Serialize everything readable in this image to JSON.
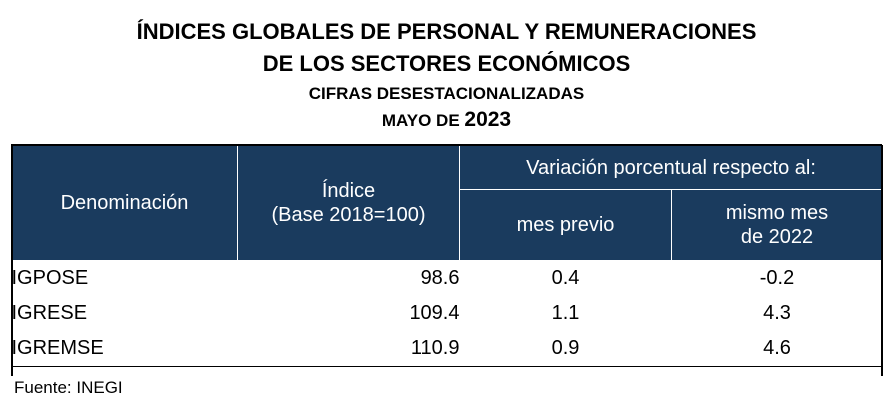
{
  "title": {
    "line1": "ÍNDICES GLOBALES DE PERSONAL Y REMUNERACIONES",
    "line2": "DE LOS SECTORES ECONÓMICOS",
    "line3": "CIFRAS DESESTACIONALIZADAS",
    "period_label": "MAYO DE",
    "year": "2023"
  },
  "table": {
    "headers": {
      "denominacion": "Denominación",
      "indice": "Índice",
      "base": "(Base 2018=100)",
      "variacion": "Variación porcentual respecto al:",
      "mes_previo": "mes previo",
      "mismo_mes": "mismo mes",
      "de_anio": "de 2022"
    },
    "rows": [
      {
        "name": "IGPOSE",
        "index": "98.6",
        "prev": "0.4",
        "year": "-0.2"
      },
      {
        "name": "IGRESE",
        "index": "109.4",
        "prev": "1.1",
        "year": "4.3"
      },
      {
        "name": "IGREMSE",
        "index": "110.9",
        "prev": "0.9",
        "year": "4.6"
      }
    ]
  },
  "source": "Fuente: INEGI",
  "colors": {
    "header_bg": "#1a3b5e",
    "header_text": "#ffffff"
  }
}
